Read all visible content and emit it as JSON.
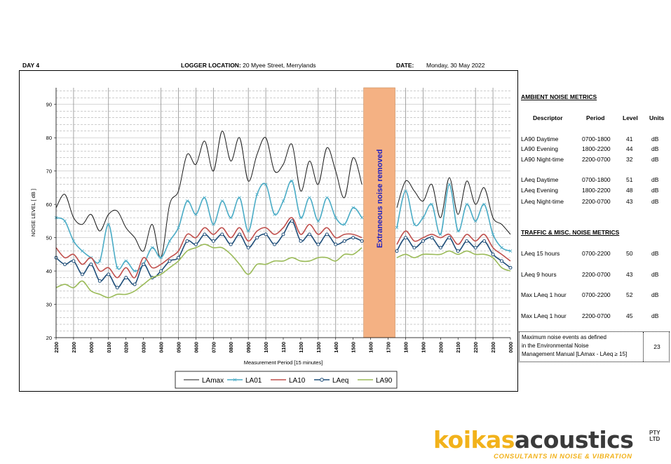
{
  "header": {
    "day": "DAY 4",
    "location_label": "LOGGER LOCATION:",
    "location_value": "20 Myee Street, Merrylands",
    "date_label": "DATE:",
    "date_value": "Monday, 30 May 2022"
  },
  "chart_data": {
    "type": "line",
    "ylabel": "NOISE LEVEL  [ dB ]",
    "xlabel": "Measurement Period  [15 minutes]",
    "ylim": [
      20,
      95
    ],
    "yticks": [
      20,
      30,
      40,
      50,
      60,
      70,
      80,
      90
    ],
    "xticks": [
      "2200",
      "2300",
      "0000",
      "0100",
      "0200",
      "0300",
      "0400",
      "0500",
      "0600",
      "0700",
      "0800",
      "0900",
      "1000",
      "1100",
      "1200",
      "1300",
      "1400",
      "1500",
      "1600",
      "1700",
      "1800",
      "1900",
      "2000",
      "2100",
      "2200",
      "2300",
      "0000"
    ],
    "grid": true,
    "legend_position": "bottom-center",
    "annotation": {
      "label": "Extraneous noise removed",
      "x_from": 17.6,
      "x_to": 19.4,
      "color": "#f4b183"
    },
    "series": [
      {
        "name": "LAmax",
        "color": "#1a1a1a",
        "marker": "none",
        "x": [
          0,
          0.5,
          1,
          1.5,
          2,
          2.5,
          3,
          3.5,
          4,
          4.5,
          5,
          5.5,
          6,
          6.5,
          7,
          7.5,
          8,
          8.5,
          9,
          9.5,
          10,
          10.5,
          11,
          11.5,
          12,
          12.5,
          13,
          13.5,
          14,
          14.5,
          15,
          15.5,
          16,
          16.5,
          17,
          17.5,
          19.5,
          20,
          20.5,
          21,
          21.5,
          22,
          22.5,
          23,
          23.5,
          24,
          24.5,
          25,
          25.5,
          26
        ],
        "y": [
          59,
          63,
          56,
          54,
          57,
          52,
          57,
          58,
          53,
          50,
          46,
          54,
          44,
          60,
          64,
          75,
          72,
          79,
          70,
          82,
          73,
          80,
          67,
          75,
          80,
          70,
          72,
          78,
          64,
          73,
          66,
          77,
          70,
          62,
          74,
          66,
          59,
          67,
          64,
          61,
          66,
          56,
          68,
          57,
          67,
          60,
          65,
          56,
          54,
          51
        ]
      },
      {
        "name": "LA01",
        "color": "#4bacc6",
        "marker": "x",
        "x": [
          0,
          0.5,
          1,
          1.5,
          2,
          2.5,
          3,
          3.5,
          4,
          4.5,
          5,
          5.5,
          6,
          6.5,
          7,
          7.5,
          8,
          8.5,
          9,
          9.5,
          10,
          10.5,
          11,
          11.5,
          12,
          12.5,
          13,
          13.5,
          14,
          14.5,
          15,
          15.5,
          16,
          16.5,
          17,
          17.5,
          19.5,
          20,
          20.5,
          21,
          21.5,
          22,
          22.5,
          23,
          23.5,
          24,
          24.5,
          25,
          25.5,
          26
        ],
        "y": [
          56,
          55,
          49,
          46,
          44,
          43,
          54,
          41,
          43,
          40,
          42,
          47,
          44,
          49,
          53,
          61,
          57,
          62,
          54,
          61,
          56,
          62,
          52,
          63,
          66,
          57,
          61,
          67,
          56,
          62,
          55,
          62,
          56,
          54,
          59,
          56,
          53,
          64,
          54,
          56,
          60,
          51,
          66,
          52,
          60,
          55,
          60,
          51,
          47,
          46
        ]
      },
      {
        "name": "LA10",
        "color": "#c0504d",
        "marker": "none",
        "x": [
          0,
          0.5,
          1,
          1.5,
          2,
          2.5,
          3,
          3.5,
          4,
          4.5,
          5,
          5.5,
          6,
          6.5,
          7,
          7.5,
          8,
          8.5,
          9,
          9.5,
          10,
          10.5,
          11,
          11.5,
          12,
          12.5,
          13,
          13.5,
          14,
          14.5,
          15,
          15.5,
          16,
          16.5,
          17,
          17.5,
          19.5,
          20,
          20.5,
          21,
          21.5,
          22,
          22.5,
          23,
          23.5,
          24,
          24.5,
          25,
          25.5,
          26
        ],
        "y": [
          47,
          44,
          45,
          42,
          44,
          40,
          41,
          38,
          41,
          38,
          44,
          41,
          42,
          44,
          46,
          51,
          50,
          53,
          51,
          53,
          50,
          53,
          49,
          52,
          53,
          51,
          53,
          56,
          51,
          54,
          51,
          53,
          50,
          51,
          51,
          50,
          48,
          52,
          49,
          50,
          51,
          50,
          51,
          48,
          51,
          49,
          51,
          47,
          45,
          43
        ]
      },
      {
        "name": "LAeq",
        "color": "#1f4e79",
        "marker": "circle",
        "x": [
          0,
          0.5,
          1,
          1.5,
          2,
          2.5,
          3,
          3.5,
          4,
          4.5,
          5,
          5.5,
          6,
          6.5,
          7,
          7.5,
          8,
          8.5,
          9,
          9.5,
          10,
          10.5,
          11,
          11.5,
          12,
          12.5,
          13,
          13.5,
          14,
          14.5,
          15,
          15.5,
          16,
          16.5,
          17,
          17.5,
          19.5,
          20,
          20.5,
          21,
          21.5,
          22,
          22.5,
          23,
          23.5,
          24,
          24.5,
          25,
          25.5,
          26
        ],
        "y": [
          44,
          42,
          43,
          39,
          42,
          37,
          39,
          35,
          38,
          36,
          42,
          38,
          40,
          43,
          44,
          49,
          48,
          51,
          49,
          51,
          48,
          51,
          47,
          50,
          51,
          48,
          51,
          55,
          49,
          51,
          48,
          51,
          48,
          49,
          50,
          49,
          46,
          50,
          47,
          49,
          50,
          47,
          50,
          46,
          49,
          47,
          49,
          45,
          43,
          41
        ]
      },
      {
        "name": "LA90",
        "color": "#9bbb59",
        "marker": "none",
        "x": [
          0,
          0.5,
          1,
          1.5,
          2,
          2.5,
          3,
          3.5,
          4,
          4.5,
          5,
          5.5,
          6,
          6.5,
          7,
          7.5,
          8,
          8.5,
          9,
          9.5,
          10,
          10.5,
          11,
          11.5,
          12,
          12.5,
          13,
          13.5,
          14,
          14.5,
          15,
          15.5,
          16,
          16.5,
          17,
          17.5,
          19.5,
          20,
          20.5,
          21,
          21.5,
          22,
          22.5,
          23,
          23.5,
          24,
          24.5,
          25,
          25.5,
          26
        ],
        "y": [
          35,
          36,
          35,
          37,
          34,
          33,
          32,
          33,
          33,
          34,
          36,
          38,
          39,
          41,
          43,
          46,
          47,
          48,
          47,
          47,
          45,
          42,
          39,
          42,
          42,
          43,
          43,
          44,
          43,
          43,
          44,
          44,
          43,
          45,
          45,
          47,
          44,
          45,
          44,
          45,
          45,
          45,
          46,
          45,
          46,
          45,
          45,
          44,
          41,
          40
        ]
      }
    ]
  },
  "ambient": {
    "title": "AMBIENT NOISE METRICS",
    "headers": {
      "descriptor": "Descriptor",
      "period": "Period",
      "level": "Level",
      "units": "Units"
    },
    "rows": [
      {
        "descriptor": "LA90 Daytime",
        "period": "0700-1800",
        "level": "41",
        "units": "dB"
      },
      {
        "descriptor": "LA90 Evening",
        "period": "1800-2200",
        "level": "44",
        "units": "dB"
      },
      {
        "descriptor": "LA90 Night-time",
        "period": "2200-0700",
        "level": "32",
        "units": "dB"
      },
      {
        "descriptor": "LAeq Daytime",
        "period": "0700-1800",
        "level": "51",
        "units": "dB"
      },
      {
        "descriptor": "LAeq Evening",
        "period": "1800-2200",
        "level": "48",
        "units": "dB"
      },
      {
        "descriptor": "LAeq Night-time",
        "period": "2200-0700",
        "level": "43",
        "units": "dB"
      }
    ]
  },
  "traffic": {
    "title": "TRAFFIC & MISC. NOISE METRICS",
    "rows": [
      {
        "descriptor": "LAeq 15 hours",
        "period": "0700-2200",
        "level": "50",
        "units": "dB"
      },
      {
        "descriptor": "LAeq 9 hours",
        "period": "2200-0700",
        "level": "43",
        "units": "dB"
      },
      {
        "descriptor": "Max LAeq 1 hour",
        "period": "0700-2200",
        "level": "52",
        "units": "dB"
      },
      {
        "descriptor": "Max LAeq 1 hour",
        "period": "2200-0700",
        "level": "45",
        "units": "dB"
      }
    ]
  },
  "max_events": {
    "line1": "Maximum noise events as defined",
    "line2": "in the Environmental Noise",
    "line3": "Management Manual [LAmax - LAeq ≥ 15]",
    "value": "23"
  },
  "logo": {
    "part1": "koikas",
    "part2": "acoustics",
    "pty": "PTY",
    "ltd": "LTD",
    "tagline": "CONSULTANTS IN NOISE & VIBRATION",
    "primary_color": "#f2b21b",
    "secondary_color": "#3a3a3a"
  }
}
